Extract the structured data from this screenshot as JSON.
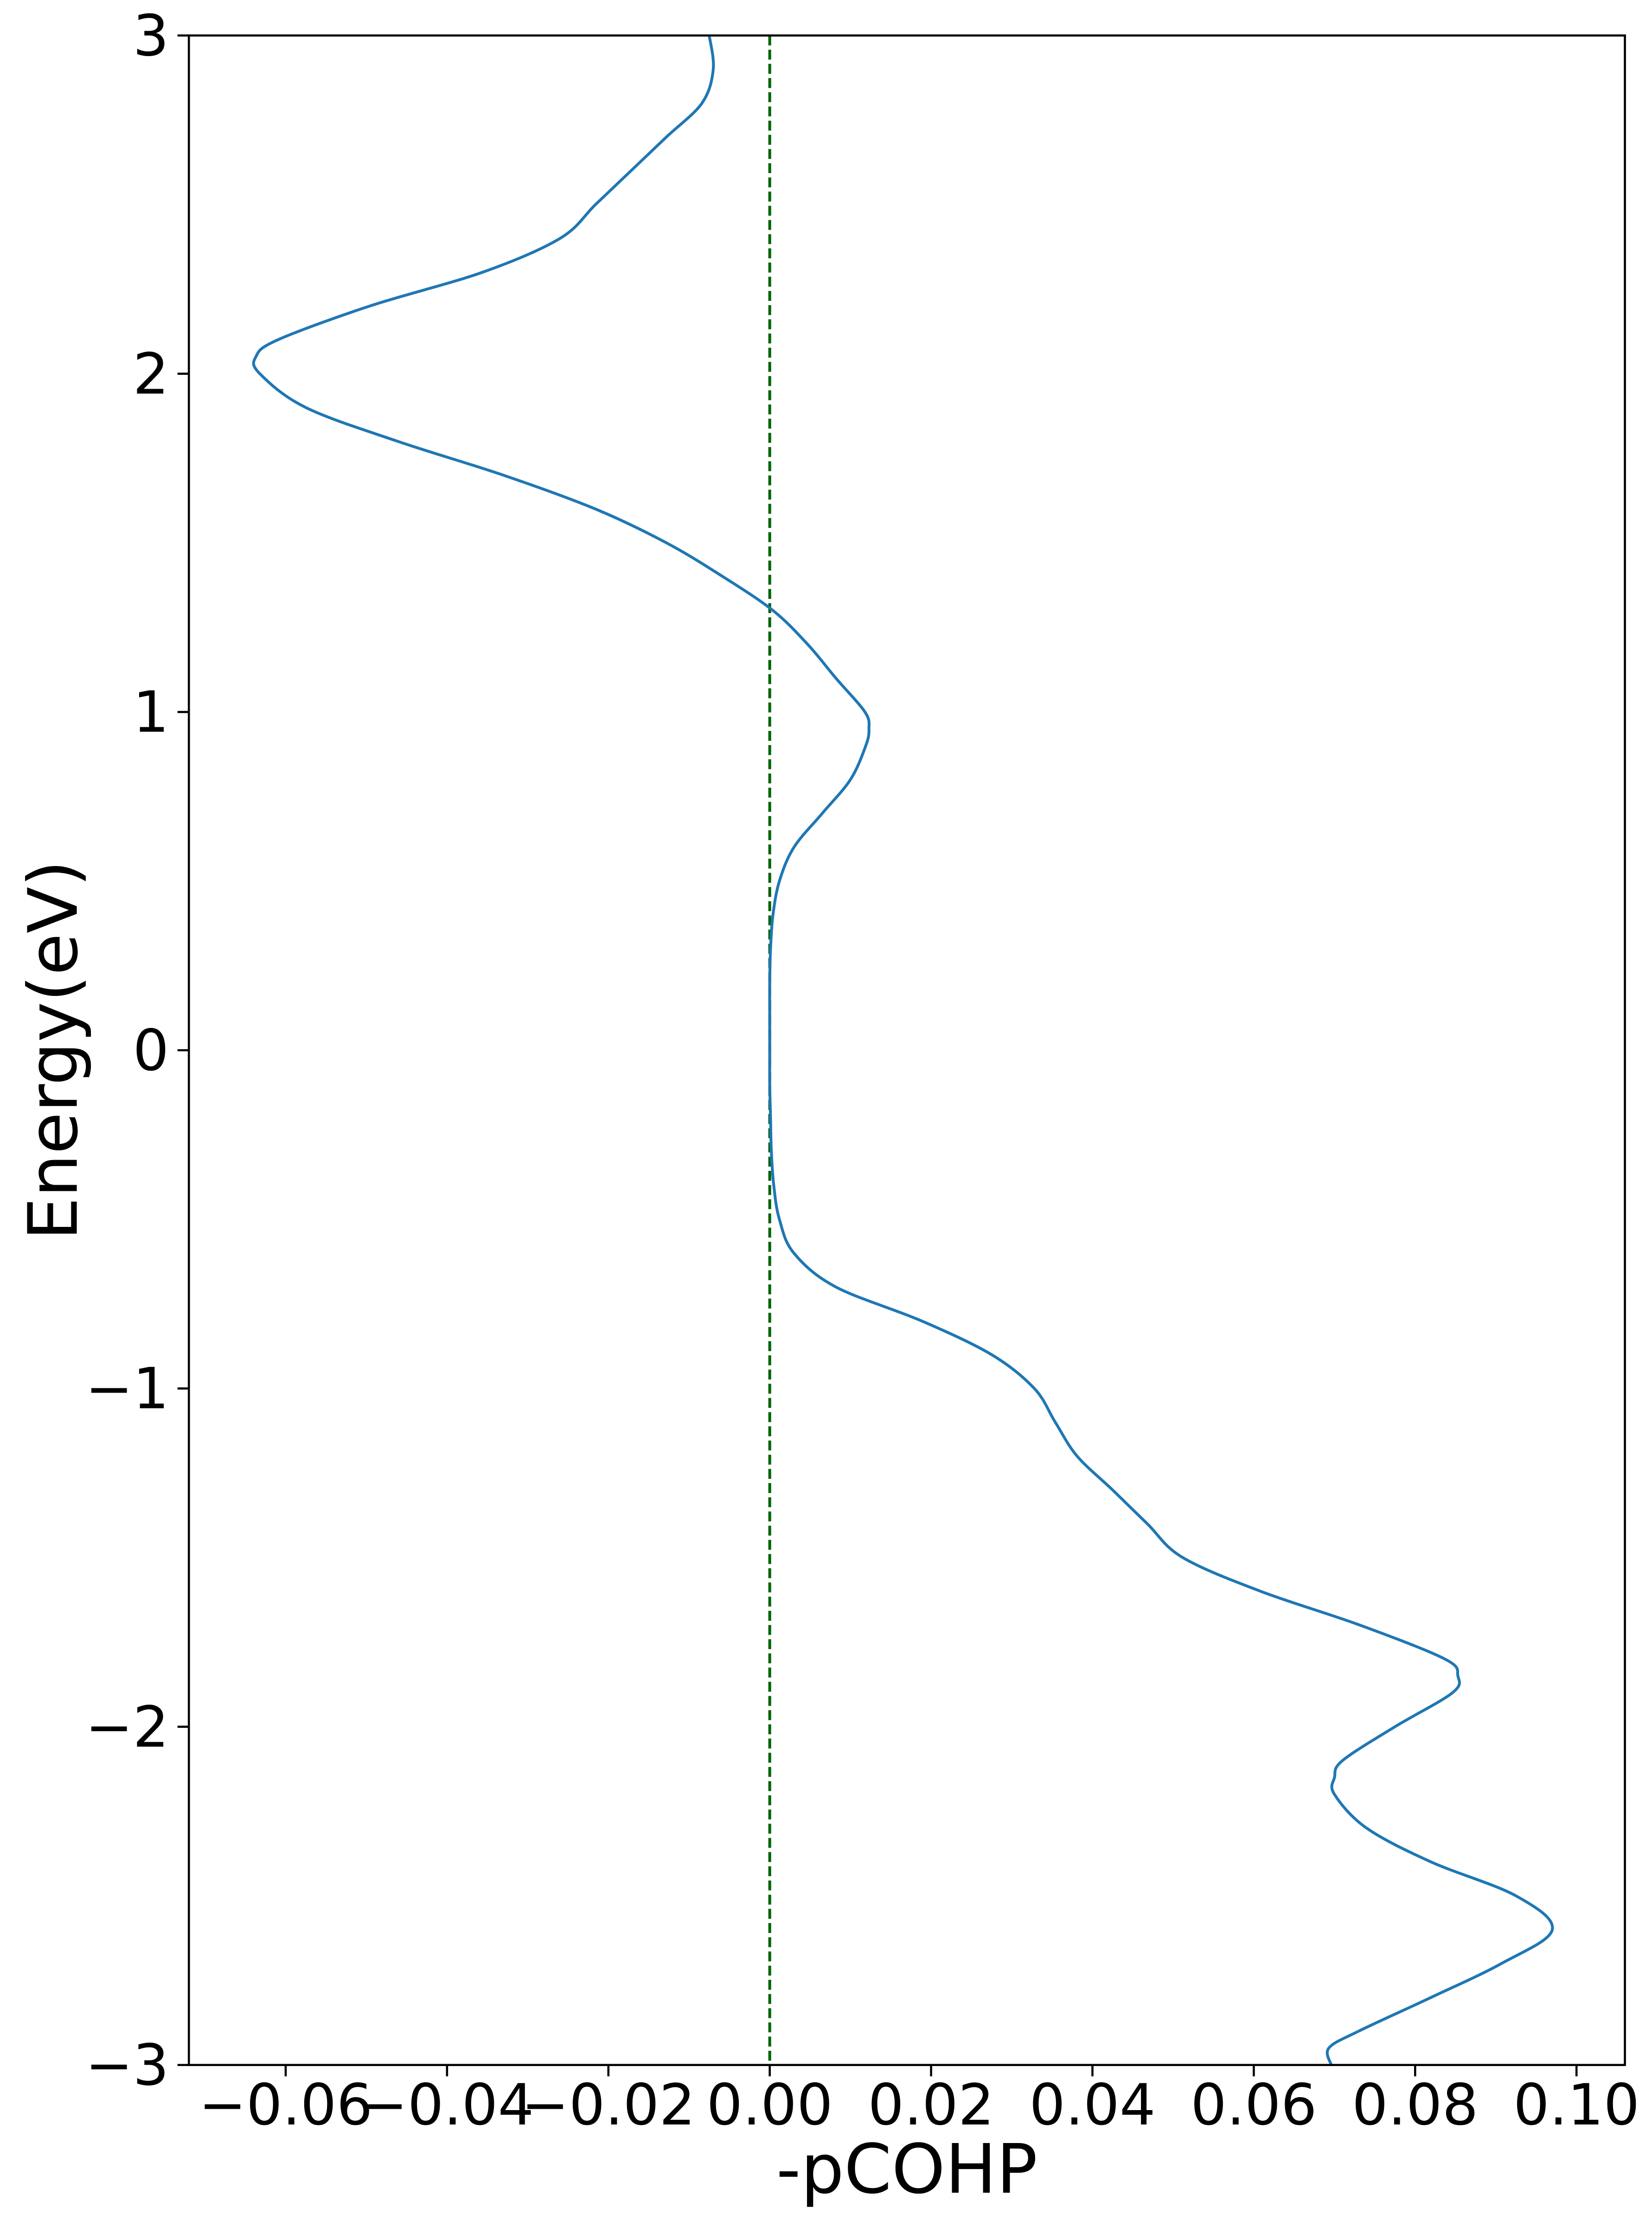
{
  "chart_data": {
    "type": "line",
    "xlabel": "-pCOHP",
    "ylabel": "Energy(eV)",
    "y": [
      -3,
      -2.95,
      -2.9,
      -2.8,
      -2.7,
      -2.6,
      -2.5,
      -2.4,
      -2.3,
      -2.2,
      -2.15,
      -2.1,
      -2.0,
      -1.9,
      -1.85,
      -1.8,
      -1.7,
      -1.6,
      -1.5,
      -1.4,
      -1.3,
      -1.2,
      -1.1,
      -1.0,
      -0.9,
      -0.8,
      -0.7,
      -0.6,
      -0.5,
      -0.4,
      -0.3,
      -0.2,
      -0.1,
      0,
      0.1,
      0.2,
      0.3,
      0.4,
      0.5,
      0.6,
      0.7,
      0.8,
      0.9,
      0.95,
      1.0,
      1.1,
      1.2,
      1.3,
      1.4,
      1.5,
      1.6,
      1.7,
      1.8,
      1.9,
      2.0,
      2.05,
      2.1,
      2.2,
      2.3,
      2.4,
      2.5,
      2.6,
      2.7,
      2.8,
      2.9,
      3.0
    ],
    "series": [
      {
        "color": "#1f77b4",
        "values": [
          0.0696,
          0.0693,
          0.073,
          0.082,
          0.0907,
          0.097,
          0.0925,
          0.082,
          0.074,
          0.07,
          0.07,
          0.071,
          0.0775,
          0.0846,
          0.0853,
          0.0837,
          0.0732,
          0.0609,
          0.0512,
          0.0468,
          0.0425,
          0.0381,
          0.0354,
          0.0328,
          0.0275,
          0.0188,
          0.0082,
          0.003,
          0.0012,
          0.0005,
          0.0002,
          0.0001,
          0,
          0,
          0,
          0,
          0.0001,
          0.0004,
          0.0012,
          0.003,
          0.0065,
          0.01,
          0.0119,
          0.0123,
          0.0118,
          0.0082,
          0.0047,
          0.0004,
          -0.0058,
          -0.0128,
          -0.0216,
          -0.033,
          -0.0461,
          -0.0575,
          -0.0632,
          -0.0637,
          -0.061,
          -0.0496,
          -0.0356,
          -0.026,
          -0.0216,
          -0.0172,
          -0.0128,
          -0.0084,
          -0.007,
          -0.0075
        ]
      }
    ],
    "vline": {
      "value": 0,
      "color": "#006400"
    },
    "xlim": [
      -0.072,
      0.106
    ],
    "xticks": [
      {
        "value": -0.06,
        "label": "−0.06"
      },
      {
        "value": -0.04,
        "label": "−0.04"
      },
      {
        "value": -0.02,
        "label": "−0.02"
      },
      {
        "value": 0,
        "label": "0.00"
      },
      0.02,
      0.04,
      0.06,
      0.08,
      {
        "value": 0.1,
        "label": "0.10"
      }
    ],
    "ylim": [
      -3,
      3
    ],
    "yticks": [
      {
        "value": -3,
        "label": "−3"
      },
      {
        "value": -2,
        "label": "−2"
      },
      {
        "value": -1,
        "label": "−1"
      },
      0,
      1,
      2,
      3
    ]
  }
}
